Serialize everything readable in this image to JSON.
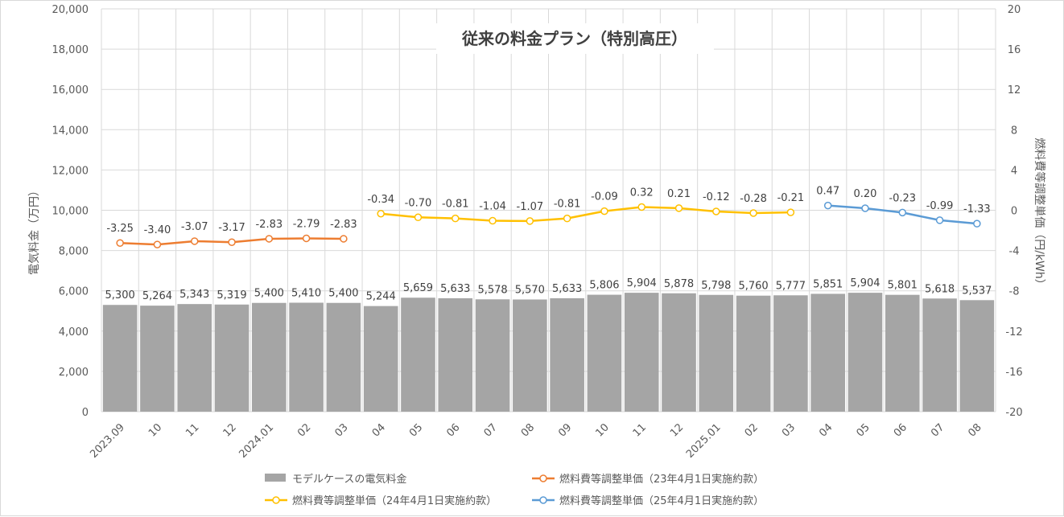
{
  "chart_data": {
    "type": "bar+line",
    "title": "従来の料金プラン（特別高圧）",
    "ylabel_left": "電気料金（万円）",
    "ylabel_right": "燃料費等調整単価（円/kWh）",
    "ylim_left": [
      0,
      20000
    ],
    "yticks_left": [
      "0",
      "2,000",
      "4,000",
      "6,000",
      "8,000",
      "10,000",
      "12,000",
      "14,000",
      "16,000",
      "18,000",
      "20,000"
    ],
    "ylim_right": [
      -20,
      20
    ],
    "yticks_right": [
      "-20",
      "-16",
      "-12",
      "-8",
      "-4",
      "0",
      "4",
      "8",
      "12",
      "16",
      "20"
    ],
    "grid": true,
    "categories": [
      "2023.09",
      "10",
      "11",
      "12",
      "2024.01",
      "02",
      "03",
      "04",
      "05",
      "06",
      "07",
      "08",
      "09",
      "10",
      "11",
      "12",
      "2025.01",
      "02",
      "03",
      "04",
      "05",
      "06",
      "07",
      "08"
    ],
    "bar_series": {
      "name": "モデルケースの電気料金",
      "color": "#a5a5a5",
      "values": [
        5300,
        5264,
        5343,
        5319,
        5400,
        5410,
        5400,
        5244,
        5659,
        5633,
        5578,
        5570,
        5633,
        5806,
        5904,
        5878,
        5798,
        5760,
        5777,
        5851,
        5904,
        5801,
        5618,
        5537
      ],
      "labels": [
        "5,300",
        "5,264",
        "5,343",
        "5,319",
        "5,400",
        "5,410",
        "5,400",
        "5,244",
        "5,659",
        "5,633",
        "5,578",
        "5,570",
        "5,633",
        "5,806",
        "5,904",
        "5,878",
        "5,798",
        "5,760",
        "5,777",
        "5,851",
        "5,904",
        "5,801",
        "5,618",
        "5,537"
      ]
    },
    "line_series": [
      {
        "name": "燃料費等調整単価（23年4月1日実施約款）",
        "color": "#ed7d31",
        "start_index": 0,
        "values": [
          -3.25,
          -3.4,
          -3.07,
          -3.17,
          -2.83,
          -2.79,
          -2.83
        ],
        "labels": [
          "-3.25",
          "-3.40",
          "-3.07",
          "-3.17",
          "-2.83",
          "-2.79",
          "-2.83"
        ]
      },
      {
        "name": "燃料費等調整単価（24年4月1日実施約款）",
        "color": "#ffc000",
        "start_index": 7,
        "values": [
          -0.34,
          -0.7,
          -0.81,
          -1.04,
          -1.07,
          -0.81,
          -0.09,
          0.32,
          0.21,
          -0.12,
          -0.28,
          -0.21
        ],
        "labels": [
          "-0.34",
          "-0.70",
          "-0.81",
          "-1.04",
          "-1.07",
          "-0.81",
          "-0.09",
          "0.32",
          "0.21",
          "-0.12",
          "-0.28",
          "-0.21"
        ]
      },
      {
        "name": "燃料費等調整単価（25年4月1日実施約款）",
        "color": "#5b9bd5",
        "start_index": 19,
        "values": [
          0.47,
          0.2,
          -0.23,
          -0.99,
          -1.33
        ],
        "labels": [
          "0.47",
          "0.20",
          "-0.23",
          "-0.99",
          "-1.33"
        ]
      }
    ],
    "legend_position": "bottom"
  }
}
